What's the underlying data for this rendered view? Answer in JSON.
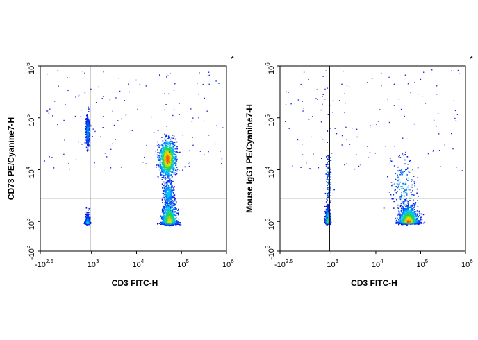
{
  "chart_data": [
    {
      "type": "scatter",
      "xlabel": "CD3 FITC-H",
      "ylabel": "CD73 PE/Cyanine7-H",
      "annotation": "*",
      "x_ticks": [
        {
          "value": -2.5,
          "base": "-10",
          "exp": "2.5"
        },
        {
          "value": 3,
          "base": "10",
          "exp": "3"
        },
        {
          "value": 4,
          "base": "10",
          "exp": "4"
        },
        {
          "value": 5,
          "base": "10",
          "exp": "5"
        },
        {
          "value": 6,
          "base": "10",
          "exp": "6"
        }
      ],
      "y_ticks": [
        {
          "value": -3,
          "base": "-10",
          "exp": "3"
        },
        {
          "value": 3,
          "base": "10",
          "exp": "3"
        },
        {
          "value": 4,
          "base": "10",
          "exp": "4"
        },
        {
          "value": 5,
          "base": "10",
          "exp": "5"
        },
        {
          "value": 6,
          "base": "10",
          "exp": "6"
        }
      ],
      "quadrant_gate": {
        "x": 2.85,
        "y": 3.45
      },
      "populations": [
        {
          "x": 2.55,
          "y": 2.85,
          "sx": 0.1,
          "sy": 0.12,
          "n": 1500,
          "peak": 0.55
        },
        {
          "x": 2.55,
          "y": 4.75,
          "sx": 0.09,
          "sy": 0.13,
          "n": 420,
          "peak": 0.25
        },
        {
          "x": 4.68,
          "y": 4.22,
          "sx": 0.09,
          "sy": 0.17,
          "n": 1100,
          "peak": 0.9
        },
        {
          "x": 4.72,
          "y": 2.95,
          "sx": 0.08,
          "sy": 0.22,
          "n": 1300,
          "peak": 0.75
        },
        {
          "x": 4.7,
          "y": 3.55,
          "sx": 0.06,
          "sy": 0.12,
          "n": 250,
          "peak": 0.3
        }
      ]
    },
    {
      "type": "scatter",
      "xlabel": "CD3 FITC-H",
      "ylabel": "Mouse IgG1 PE/Cyanine7-H",
      "annotation": "*",
      "x_ticks": [
        {
          "value": -2.5,
          "base": "-10",
          "exp": "2.5"
        },
        {
          "value": 3,
          "base": "10",
          "exp": "3"
        },
        {
          "value": 4,
          "base": "10",
          "exp": "4"
        },
        {
          "value": 5,
          "base": "10",
          "exp": "5"
        },
        {
          "value": 6,
          "base": "10",
          "exp": "6"
        }
      ],
      "y_ticks": [
        {
          "value": -3,
          "base": "-10",
          "exp": "3"
        },
        {
          "value": 3,
          "base": "10",
          "exp": "3"
        },
        {
          "value": 4,
          "base": "10",
          "exp": "4"
        },
        {
          "value": 5,
          "base": "10",
          "exp": "5"
        },
        {
          "value": 6,
          "base": "10",
          "exp": "6"
        }
      ],
      "quadrant_gate": {
        "x": 2.85,
        "y": 3.45
      },
      "populations": [
        {
          "x": 2.6,
          "y": 2.95,
          "sx": 0.12,
          "sy": 0.14,
          "n": 1700,
          "peak": 0.6
        },
        {
          "x": 4.72,
          "y": 2.95,
          "sx": 0.1,
          "sy": 0.16,
          "n": 1800,
          "peak": 0.95
        },
        {
          "x": 4.6,
          "y": 3.7,
          "sx": 0.14,
          "sy": 0.25,
          "n": 160,
          "peak": 0.2
        },
        {
          "x": 2.7,
          "y": 3.8,
          "sx": 0.14,
          "sy": 0.3,
          "n": 110,
          "peak": 0.15
        }
      ]
    }
  ]
}
